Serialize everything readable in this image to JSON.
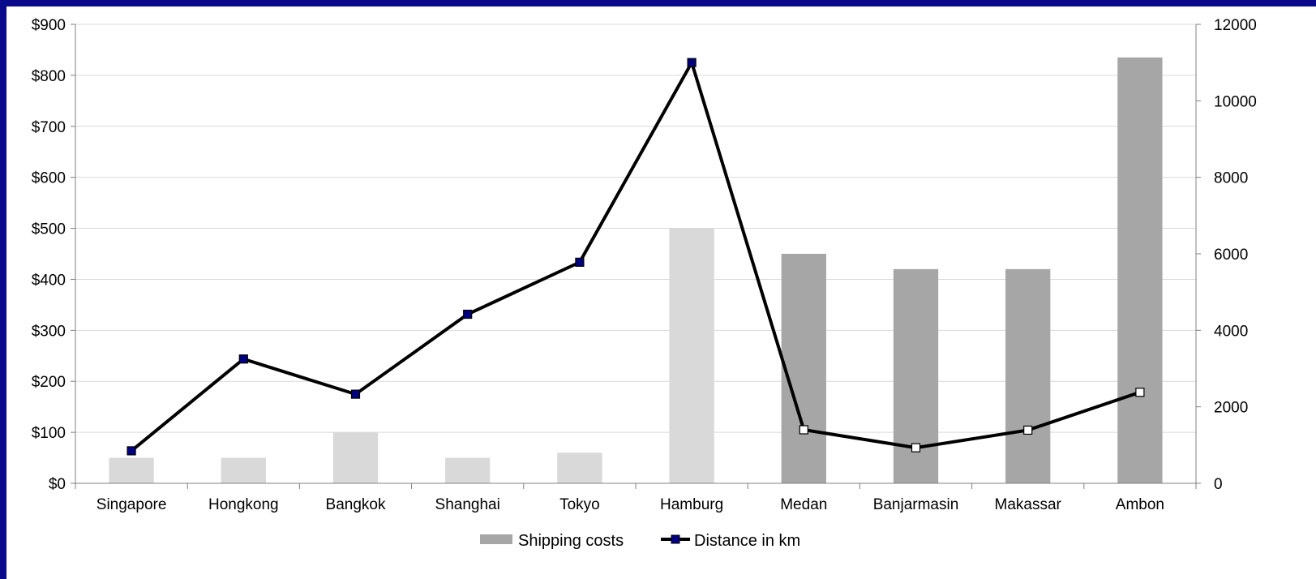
{
  "chart_data": {
    "type": "bar",
    "categories": [
      "Singapore",
      "Hongkong",
      "Bangkok",
      "Shanghai",
      "Tokyo",
      "Hamburg",
      "Medan",
      "Banjarmasin",
      "Makassar",
      "Ambon"
    ],
    "series": [
      {
        "name": "Shipping costs",
        "type": "bar",
        "axis": "left",
        "values": [
          50,
          50,
          100,
          50,
          60,
          500,
          450,
          420,
          420,
          835
        ],
        "colors": [
          "#d9d9d9",
          "#d9d9d9",
          "#d9d9d9",
          "#d9d9d9",
          "#d9d9d9",
          "#d9d9d9",
          "#a6a6a6",
          "#a6a6a6",
          "#a6a6a6",
          "#a6a6a6"
        ]
      },
      {
        "name": "Distance in km",
        "type": "line",
        "axis": "right",
        "values": [
          850,
          3250,
          2330,
          4420,
          5780,
          11000,
          1400,
          930,
          1390,
          2380
        ],
        "marker_fills": [
          "#000080",
          "#000080",
          "#000080",
          "#000080",
          "#000080",
          "#000080",
          "#ffffff",
          "#ffffff",
          "#ffffff",
          "#ffffff"
        ]
      }
    ],
    "y_left": {
      "min": 0,
      "max": 900,
      "step": 100,
      "tick_labels": [
        "$0",
        "$100",
        "$200",
        "$300",
        "$400",
        "$500",
        "$600",
        "$700",
        "$800",
        "$900"
      ]
    },
    "y_right": {
      "min": 0,
      "max": 12000,
      "step": 2000,
      "tick_labels": [
        "0",
        "2000",
        "4000",
        "6000",
        "8000",
        "10000",
        "12000"
      ]
    },
    "grid": true,
    "legend_position": "bottom",
    "legend": [
      {
        "label": "Shipping costs",
        "kind": "bar",
        "color": "#a6a6a6"
      },
      {
        "label": "Distance in km",
        "kind": "line",
        "color": "#000000",
        "marker": "#000080"
      }
    ],
    "colors": {
      "line": "#000000",
      "grid": "#d9d9d9",
      "axis": "#808080",
      "frame": "#0a0a8c"
    }
  }
}
